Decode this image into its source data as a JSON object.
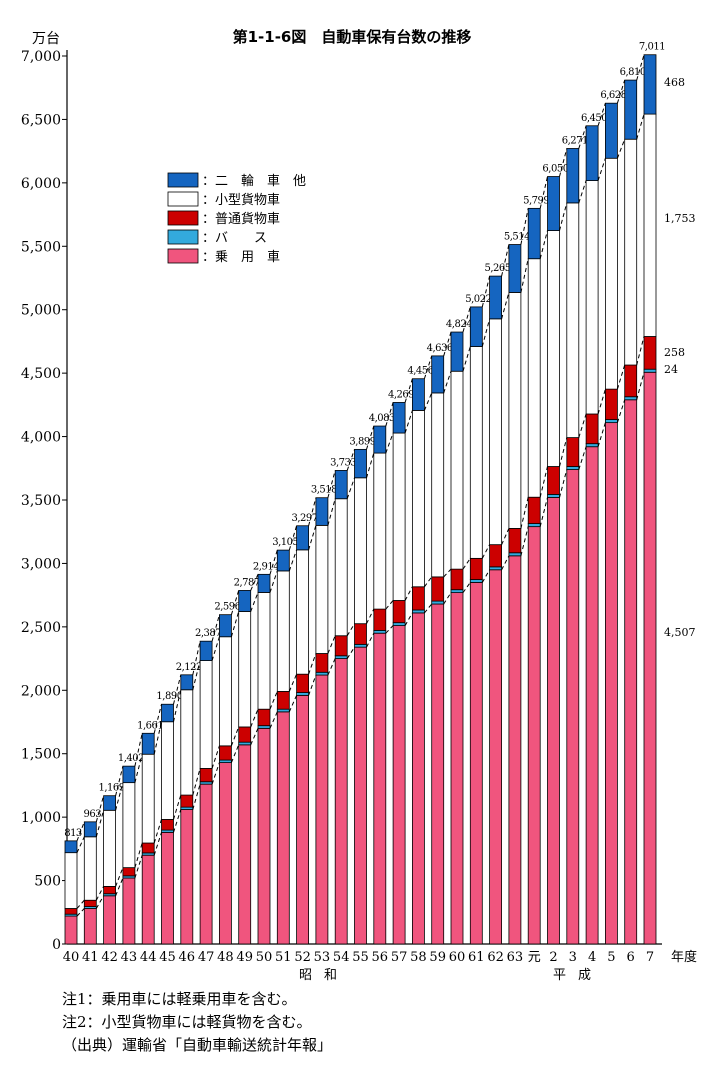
{
  "chart_data": {
    "type": "bar",
    "stacked": true,
    "title": "第1-1-6図　自動車保有台数の推移",
    "y_unit": "万台",
    "x_unit": "年度",
    "era_labels": [
      "昭和",
      "平成"
    ],
    "ylim": [
      0,
      7000
    ],
    "yticks": [
      "0",
      "500",
      "1,000",
      "1,500",
      "2,000",
      "2,500",
      "3,000",
      "3,500",
      "4,000",
      "4,500",
      "5,000",
      "5,500",
      "6,000",
      "6,500",
      "7,000"
    ],
    "categories": [
      "40",
      "41",
      "42",
      "43",
      "44",
      "45",
      "46",
      "47",
      "48",
      "49",
      "50",
      "51",
      "52",
      "53",
      "54",
      "55",
      "56",
      "57",
      "58",
      "59",
      "60",
      "61",
      "62",
      "63",
      "元",
      "2",
      "3",
      "4",
      "5",
      "6",
      "7"
    ],
    "totals": [
      813,
      963,
      1169,
      1402,
      1661,
      1890,
      2122,
      2387,
      2596,
      2787,
      2914,
      3105,
      3297,
      3518,
      3733,
      3899,
      4083,
      4269,
      4456,
      4636,
      4824,
      5022,
      5265,
      5514,
      5799,
      6050,
      6271,
      6450,
      6628,
      6810,
      7011
    ],
    "total_labels": [
      "813",
      "963",
      "1,169",
      "1,402",
      "1,661",
      "1,890",
      "2,122",
      "2,387",
      "2,596",
      "2,787",
      "2,914",
      "3,105",
      "3,297",
      "3,518",
      "3,733",
      "3,899",
      "4,083",
      "4,269",
      "4,456",
      "4,636",
      "4,824",
      "5,022",
      "5,265",
      "5,514",
      "5,799",
      "6,050",
      "6,271",
      "6,450",
      "6,628",
      "6,810",
      "7,011"
    ],
    "series": [
      {
        "name": "乗　用　車",
        "color": "#f0557e",
        "values": [
          220,
          280,
          380,
          520,
          700,
          880,
          1060,
          1260,
          1430,
          1570,
          1700,
          1830,
          1960,
          2120,
          2250,
          2340,
          2450,
          2510,
          2610,
          2680,
          2770,
          2850,
          2950,
          3060,
          3290,
          3520,
          3740,
          3920,
          4110,
          4290,
          4507
        ]
      },
      {
        "name": "バ　　ス",
        "color": "#33aadd",
        "values": [
          15,
          15,
          16,
          17,
          18,
          18,
          19,
          19,
          20,
          21,
          21,
          21,
          22,
          22,
          22,
          22,
          22,
          23,
          23,
          23,
          23,
          23,
          23,
          24,
          24,
          24,
          24,
          24,
          24,
          24,
          24
        ]
      },
      {
        "name": "普通貨物車",
        "color": "#cc0000",
        "values": [
          45,
          50,
          58,
          65,
          78,
          84,
          95,
          105,
          112,
          120,
          130,
          140,
          145,
          148,
          158,
          163,
          168,
          175,
          183,
          191,
          162,
          167,
          175,
          192,
          208,
          220,
          228,
          234,
          240,
          250,
          258
        ]
      },
      {
        "name": "小型貨物車",
        "color": "#ffffff",
        "values": [
          440,
          500,
          600,
          670,
          700,
          770,
          830,
          850,
          860,
          910,
          920,
          950,
          980,
          1010,
          1080,
          1150,
          1230,
          1320,
          1390,
          1450,
          1560,
          1670,
          1780,
          1860,
          1880,
          1860,
          1850,
          1840,
          1820,
          1780,
          1753
        ]
      },
      {
        "name": "二　輪　車　他",
        "color": "#1565c0",
        "values": [
          93,
          118,
          115,
          130,
          165,
          138,
          118,
          153,
          174,
          166,
          143,
          164,
          190,
          218,
          223,
          224,
          213,
          241,
          250,
          292,
          309,
          312,
          337,
          378,
          397,
          426,
          429,
          432,
          434,
          466,
          468
        ]
      }
    ],
    "value_labels_last": [
      {
        "series": "二　輪　車　他",
        "text": "468"
      },
      {
        "series": "小型貨物車",
        "text": "1,753"
      },
      {
        "series": "普通貨物車",
        "text": "258"
      },
      {
        "series": "バ　　ス",
        "text": "24"
      },
      {
        "series": "乗　用　車",
        "text": "4,507"
      }
    ],
    "legend_order": [
      "二　輪　車　他",
      "小型貨物車",
      "普通貨物車",
      "バ　　ス",
      "乗　用　車"
    ],
    "legend_position": "upper-left",
    "grid": false
  },
  "notes": [
    "注1：乗用車には軽乗用車を含む。",
    "注2：小型貨物車には軽貨物を含む。",
    "（出典）運輸省「自動車輸送統計年報」"
  ]
}
